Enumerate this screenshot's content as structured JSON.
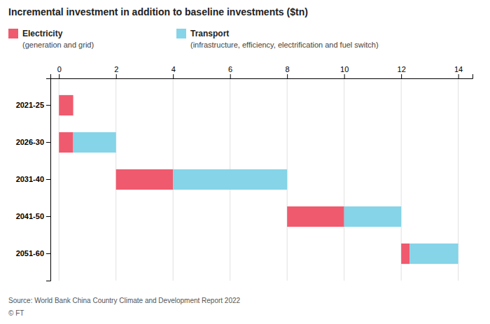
{
  "chart_data": {
    "type": "bar",
    "orientation": "horizontal",
    "title": "Incremental investment in addition to baseline investments ($tn)",
    "categories": [
      "2021-25",
      "2026-30",
      "2031-40",
      "2041-50",
      "2051-60"
    ],
    "series": [
      {
        "name": "Electricity",
        "description": "(generation and grid)",
        "color": "#f05a6e",
        "start": [
          0,
          0,
          2,
          8,
          12
        ],
        "values": [
          0.5,
          0.5,
          2,
          2,
          0.3
        ]
      },
      {
        "name": "Transport",
        "description": "(infrastructure, efficiency, electrification and fuel switch)",
        "color": "#85d4e8",
        "start": [
          0,
          0.5,
          4,
          10,
          12.3
        ],
        "values": [
          0,
          1.5,
          4,
          2,
          1.7
        ]
      }
    ],
    "xlim": [
      -0.3,
      14.5
    ],
    "xticks": [
      0,
      2,
      4,
      6,
      8,
      10,
      12,
      14
    ],
    "grid": true,
    "legend": "top left",
    "source": "Source: World Bank China Country Climate and Development Report 2022",
    "credit": "© FT"
  }
}
